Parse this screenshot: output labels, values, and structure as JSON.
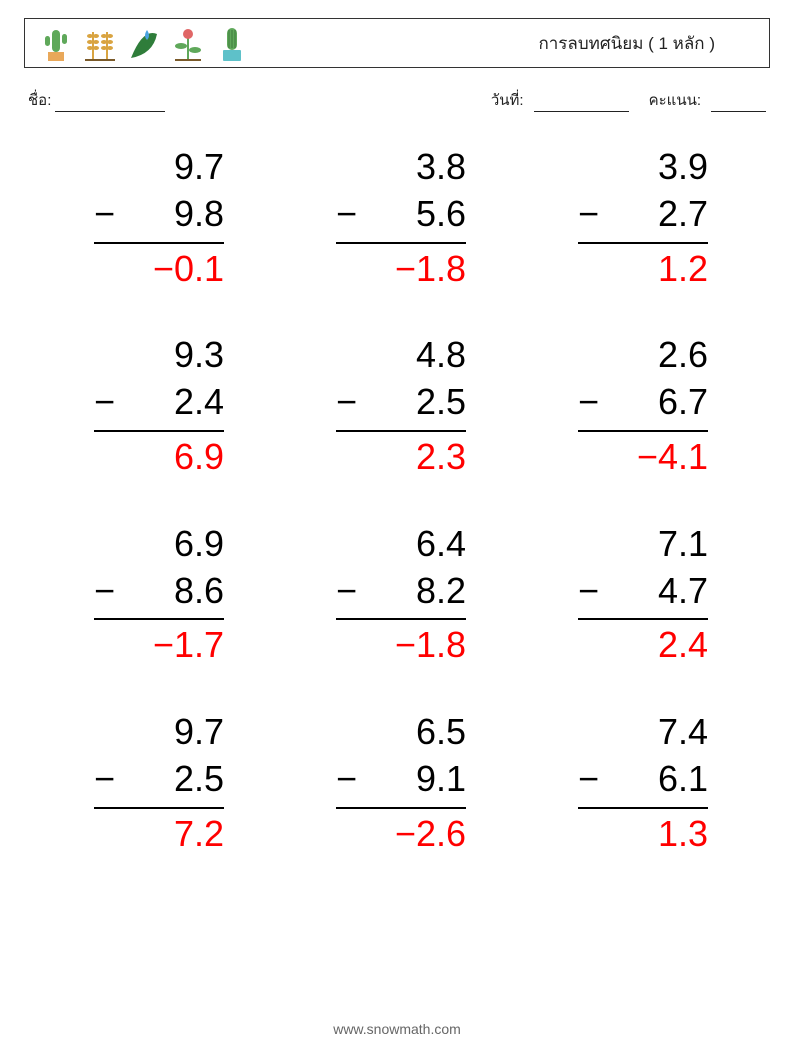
{
  "header": {
    "title": "การลบทศนิยม ( 1 หลัก )",
    "icon_colors": {
      "pot": "#e9a85a",
      "cactus": "#5fa85a",
      "wheat": "#d9a441",
      "leaf_dark": "#2f7d3a",
      "drop": "#4aa3e0",
      "stem": "#5fa85a",
      "bloom": "#e06666",
      "pot2": "#5ec1c9"
    }
  },
  "meta": {
    "name_label": "ชื่อ:",
    "date_label": "วันที่:",
    "score_label": "คะแนน:"
  },
  "answer_color": "#ff0000",
  "text_color": "#000000",
  "problems": [
    {
      "a": "9.7",
      "b": "9.8",
      "ans": "−0.1"
    },
    {
      "a": "3.8",
      "b": "5.6",
      "ans": "−1.8"
    },
    {
      "a": "3.9",
      "b": "2.7",
      "ans": "1.2"
    },
    {
      "a": "9.3",
      "b": "2.4",
      "ans": "6.9"
    },
    {
      "a": "4.8",
      "b": "2.5",
      "ans": "2.3"
    },
    {
      "a": "2.6",
      "b": "6.7",
      "ans": "−4.1"
    },
    {
      "a": "6.9",
      "b": "8.6",
      "ans": "−1.7"
    },
    {
      "a": "6.4",
      "b": "8.2",
      "ans": "−1.8"
    },
    {
      "a": "7.1",
      "b": "4.7",
      "ans": "2.4"
    },
    {
      "a": "9.7",
      "b": "2.5",
      "ans": "7.2"
    },
    {
      "a": "6.5",
      "b": "9.1",
      "ans": "−2.6"
    },
    {
      "a": "7.4",
      "b": "6.1",
      "ans": "1.3"
    }
  ],
  "footer": "www.snowmath.com"
}
